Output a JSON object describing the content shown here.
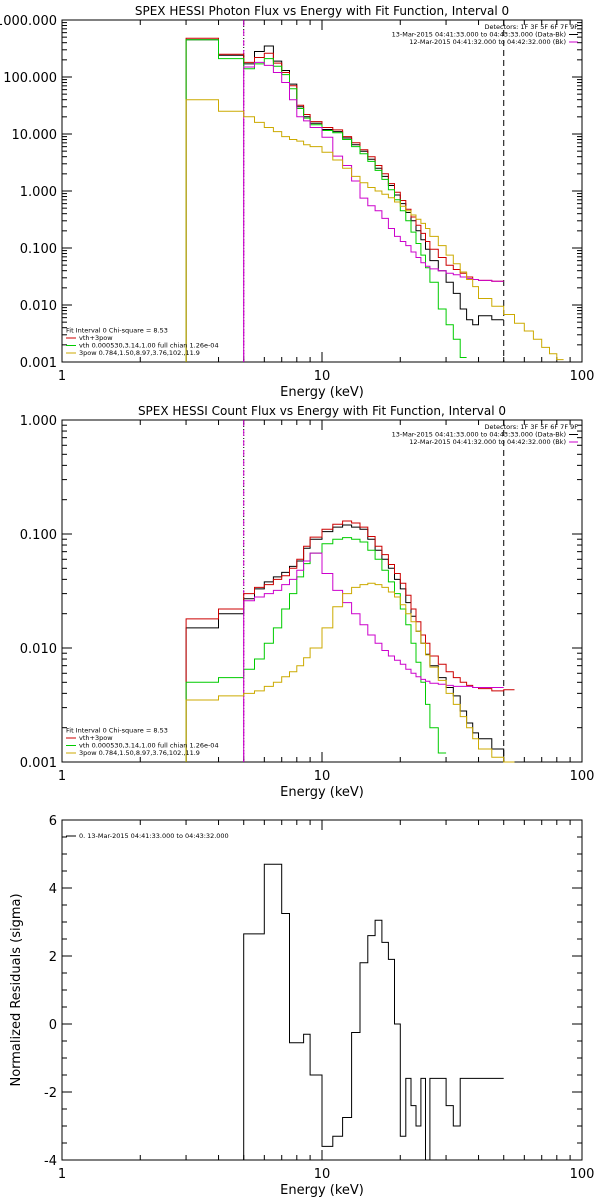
{
  "chart_data": [
    {
      "type": "line",
      "title": "SPEX HESSI Photon Flux vs Energy with Fit Function, Interval 0",
      "xlabel": "Energy (keV)",
      "ylabel": "",
      "xscale": "log",
      "yscale": "log",
      "xlim": [
        1,
        100
      ],
      "ylim": [
        0.001,
        1000
      ],
      "xticks": [
        {
          "v": 1,
          "label": "1"
        },
        {
          "v": 10,
          "label": "10"
        },
        {
          "v": 100,
          "label": "100"
        }
      ],
      "yticks": [
        {
          "v": 1000,
          "label": "1000.000"
        },
        {
          "v": 100,
          "label": "100.000"
        },
        {
          "v": 10,
          "label": "10.000"
        },
        {
          "v": 1,
          "label": "1.000"
        },
        {
          "v": 0.1,
          "label": "0.100"
        },
        {
          "v": 0.01,
          "label": "0.010"
        },
        {
          "v": 0.001,
          "label": "0.001"
        }
      ],
      "vlines": [
        {
          "x": 5,
          "style": "dotted",
          "color": "#000000"
        },
        {
          "x": 5,
          "style": "dashed",
          "color": "#cc00cc"
        },
        {
          "x": 50,
          "style": "dashed",
          "color": "#000000"
        }
      ],
      "legend_left": [
        {
          "text": "Fit Interval 0   Chi-square = 8.53",
          "color": "#000000"
        },
        {
          "text": "vth+3pow",
          "color": "#cc0000"
        },
        {
          "text": "vth 0.000530,3.14,1.00  full chian 1.26e-04",
          "color": "#00cc00"
        },
        {
          "text": "3pow 0.784,1.50,8.97,3.76,102.,11.9",
          "color": "#ccaa00"
        }
      ],
      "legend_right": [
        {
          "text": "Detectors: 1F 3F 5F 6F 7F 9F",
          "color": "#000000"
        },
        {
          "text": "13-Mar-2015 04:41:33.000 to 04:43:33.000 (Data-Bk)",
          "color": "#000000"
        },
        {
          "text": "12-Mar-2015 04:41:32.000 to 04:42:32.000 (Bk)",
          "color": "#cc00cc"
        }
      ],
      "edges": [
        3,
        4,
        5,
        5.5,
        6,
        6.5,
        7,
        7.5,
        8,
        8.5,
        9,
        10,
        11,
        12,
        13,
        14,
        15,
        16,
        17,
        18,
        19,
        20,
        21,
        22,
        23,
        24,
        25,
        26,
        28,
        30,
        32,
        34,
        36,
        38,
        40,
        45,
        50,
        55,
        60,
        65,
        70,
        75,
        80,
        85,
        90
      ],
      "series": [
        {
          "color": "#000000",
          "values": [
            450,
            240,
            170,
            280,
            350,
            190,
            130,
            75,
            30,
            20,
            15.5,
            12,
            11,
            8.5,
            6.5,
            5,
            3.6,
            2.5,
            1.8,
            1.25,
            0.85,
            0.6,
            0.42,
            0.3,
            0.2,
            0.14,
            0.095,
            0.06,
            0.04,
            0.025,
            0.016,
            0.0085,
            0.0055,
            0.0045,
            0.0065,
            0.0055,
            null,
            null,
            null,
            null,
            null,
            null,
            null,
            null
          ]
        },
        {
          "color": "#cc0000",
          "values": [
            480,
            250,
            180,
            220,
            260,
            175,
            120,
            70,
            32,
            22,
            16.5,
            13,
            11.8,
            9,
            7,
            5.3,
            4,
            2.8,
            2,
            1.35,
            0.95,
            0.68,
            0.48,
            0.35,
            0.25,
            0.18,
            0.13,
            0.095,
            0.068,
            0.05,
            0.042,
            0.036,
            0.031,
            0.028,
            0.027,
            0.026,
            null,
            null,
            null,
            null,
            null,
            null,
            null,
            null
          ]
        },
        {
          "color": "#00cc00",
          "values": [
            450,
            210,
            140,
            170,
            210,
            155,
            110,
            62,
            28,
            19,
            14.5,
            11.5,
            10.5,
            8,
            6,
            4.5,
            3.3,
            2.3,
            1.6,
            1.05,
            0.7,
            0.45,
            0.3,
            0.19,
            0.12,
            0.075,
            0.045,
            0.025,
            0.0085,
            0.0045,
            0.0025,
            0.0012,
            null,
            null,
            null,
            null,
            null,
            null,
            null,
            null,
            null,
            null,
            null,
            null
          ]
        },
        {
          "color": "#cc00cc",
          "values": [
            null,
            null,
            150,
            180,
            160,
            120,
            80,
            40,
            20,
            17,
            13,
            8.8,
            4.1,
            2.8,
            1.5,
            0.75,
            0.55,
            0.45,
            0.33,
            0.22,
            0.16,
            0.13,
            0.11,
            0.085,
            0.068,
            0.055,
            0.048,
            0.043,
            0.04,
            0.036,
            0.034,
            0.031,
            0.029,
            0.028,
            0.027,
            0.026,
            null,
            null,
            null,
            null,
            null,
            null,
            null,
            null
          ]
        },
        {
          "color": "#ccaa00",
          "values": [
            40,
            25,
            20,
            16,
            13,
            11,
            9,
            8,
            7.5,
            6.5,
            6,
            4.8,
            3.5,
            2.5,
            1.8,
            1.4,
            1.15,
            1,
            0.88,
            0.76,
            0.64,
            0.54,
            0.45,
            0.38,
            0.32,
            0.27,
            0.22,
            0.16,
            0.11,
            0.075,
            0.053,
            0.038,
            0.028,
            0.021,
            0.013,
            0.0095,
            0.0068,
            0.0048,
            0.0035,
            0.0025,
            0.0018,
            0.0014,
            0.0011,
            null
          ]
        }
      ]
    },
    {
      "type": "line",
      "title": "SPEX HESSI Count Flux vs Energy with Fit Function, Interval 0",
      "xlabel": "Energy (keV)",
      "ylabel": "",
      "xscale": "log",
      "yscale": "log",
      "xlim": [
        1,
        100
      ],
      "ylim": [
        0.001,
        1
      ],
      "xticks": [
        {
          "v": 1,
          "label": "1"
        },
        {
          "v": 10,
          "label": "10"
        },
        {
          "v": 100,
          "label": "100"
        }
      ],
      "yticks": [
        {
          "v": 1,
          "label": "1.000"
        },
        {
          "v": 0.1,
          "label": "0.100"
        },
        {
          "v": 0.01,
          "label": "0.010"
        },
        {
          "v": 0.001,
          "label": "0.001"
        }
      ],
      "vlines": [
        {
          "x": 5,
          "style": "dotted",
          "color": "#000000"
        },
        {
          "x": 5,
          "style": "dashed",
          "color": "#cc00cc"
        },
        {
          "x": 50,
          "style": "dashed",
          "color": "#000000"
        }
      ],
      "legend_left": [
        {
          "text": "Fit Interval 0   Chi-square = 8.53",
          "color": "#000000"
        },
        {
          "text": "vth+3pow",
          "color": "#cc0000"
        },
        {
          "text": "vth 0.000530,3.14,1.00  full chian 1.26e-04",
          "color": "#00cc00"
        },
        {
          "text": "3pow 0.784,1.50,8.97,3.76,102.,11.9",
          "color": "#ccaa00"
        }
      ],
      "legend_right": [
        {
          "text": "Detectors: 1F 3F 5F 6F 7F 9F",
          "color": "#000000"
        },
        {
          "text": "13-Mar-2015 04:41:33.000 to 04:43:33.000 (Data-Bk)",
          "color": "#000000"
        },
        {
          "text": "12-Mar-2015 04:41:32.000 to 04:42:32.000 (Bk)",
          "color": "#cc00cc"
        }
      ],
      "edges": [
        3,
        4,
        5,
        5.5,
        6,
        6.5,
        7,
        7.5,
        8,
        8.5,
        9,
        10,
        11,
        12,
        13,
        14,
        15,
        16,
        17,
        18,
        19,
        20,
        21,
        22,
        23,
        24,
        25,
        26,
        28,
        30,
        32,
        34,
        36,
        38,
        40,
        45,
        50,
        55
      ],
      "series": [
        {
          "color": "#000000",
          "values": [
            0.015,
            0.02,
            0.027,
            0.033,
            0.038,
            0.042,
            0.046,
            0.052,
            0.058,
            0.075,
            0.09,
            0.105,
            0.115,
            0.12,
            0.115,
            0.11,
            0.09,
            0.072,
            0.06,
            0.05,
            0.04,
            0.033,
            0.025,
            0.019,
            0.014,
            0.011,
            0.0088,
            0.007,
            0.0055,
            0.0045,
            0.0038,
            0.0028,
            0.0022,
            0.0018,
            0.0016,
            0.0013,
            0.001
          ]
        },
        {
          "color": "#cc0000",
          "values": [
            0.018,
            0.022,
            0.03,
            0.034,
            0.036,
            0.04,
            0.043,
            0.05,
            0.06,
            0.078,
            0.094,
            0.11,
            0.122,
            0.13,
            0.125,
            0.115,
            0.095,
            0.078,
            0.066,
            0.054,
            0.045,
            0.037,
            0.029,
            0.022,
            0.017,
            0.013,
            0.011,
            0.0085,
            0.0072,
            0.0062,
            0.0055,
            0.005,
            0.0047,
            0.0045,
            0.0044,
            0.0042,
            0.0043
          ]
        },
        {
          "color": "#00cc00",
          "values": [
            0.005,
            0.0055,
            0.0065,
            0.008,
            0.011,
            0.015,
            0.022,
            0.03,
            0.042,
            0.055,
            0.068,
            0.082,
            0.09,
            0.093,
            0.09,
            0.085,
            0.072,
            0.06,
            0.048,
            0.038,
            0.03,
            0.022,
            0.016,
            0.011,
            0.0075,
            0.005,
            0.0032,
            0.002,
            0.0012,
            null,
            null,
            null,
            null,
            null,
            null,
            null,
            null
          ]
        },
        {
          "color": "#cc00cc",
          "values": [
            null,
            null,
            0.026,
            0.028,
            0.03,
            0.032,
            0.036,
            0.04,
            0.048,
            0.058,
            0.068,
            0.045,
            0.032,
            0.025,
            0.02,
            0.016,
            0.013,
            0.011,
            0.0095,
            0.0085,
            0.0078,
            0.0072,
            0.0065,
            0.006,
            0.0056,
            0.0053,
            0.0051,
            0.0049,
            0.0048,
            0.0047,
            0.0046,
            0.0046,
            0.0046,
            0.0045,
            0.0045,
            0.0045,
            null
          ]
        },
        {
          "color": "#ccaa00",
          "values": [
            0.0035,
            0.0038,
            0.004,
            0.0042,
            0.0046,
            0.005,
            0.0056,
            0.0062,
            0.007,
            0.0082,
            0.01,
            0.015,
            0.023,
            0.03,
            0.034,
            0.036,
            0.037,
            0.036,
            0.034,
            0.031,
            0.028,
            0.024,
            0.02,
            0.017,
            0.014,
            0.011,
            0.0087,
            0.0068,
            0.0052,
            0.004,
            0.0032,
            0.0025,
            0.002,
            0.0016,
            0.0013,
            0.0011,
            0.001
          ]
        }
      ]
    },
    {
      "type": "line",
      "title": "",
      "xlabel": "Energy (keV)",
      "ylabel": "Normalized Residuals (sigma)",
      "xscale": "log",
      "yscale": "linear",
      "xlim": [
        1,
        100
      ],
      "ylim": [
        -4,
        6
      ],
      "xticks": [
        {
          "v": 1,
          "label": "1"
        },
        {
          "v": 10,
          "label": "10"
        },
        {
          "v": 100,
          "label": "100"
        }
      ],
      "yticks": [
        {
          "v": 6,
          "label": "6"
        },
        {
          "v": 4,
          "label": "4"
        },
        {
          "v": 2,
          "label": "2"
        },
        {
          "v": 0,
          "label": "0"
        },
        {
          "v": -2,
          "label": "-2"
        },
        {
          "v": -4,
          "label": "-4"
        }
      ],
      "vlines": [],
      "legend_left": [
        {
          "text": "0. 13-Mar-2015 04:41:33.000 to 04:43:32.000",
          "color": "#000000"
        }
      ],
      "legend_right": [],
      "edges": [
        5,
        6,
        7,
        7.5,
        8,
        8.5,
        9,
        10,
        11,
        12,
        13,
        14,
        15,
        16,
        17,
        18,
        19,
        20,
        21,
        22,
        23,
        24,
        25,
        26,
        28,
        30,
        32,
        34,
        36,
        38,
        40,
        45,
        50
      ],
      "series": [
        {
          "color": "#000000",
          "values": [
            2.65,
            4.7,
            3.25,
            -0.55,
            -0.55,
            -0.3,
            -1.5,
            -3.6,
            -3.3,
            -2.75,
            -0.25,
            1.8,
            2.6,
            3.05,
            2.4,
            1.9,
            0.0,
            -3.3,
            -1.6,
            -2.4,
            -3.0,
            -1.6,
            -4.0,
            -1.6,
            -1.6,
            -2.4,
            -3.0,
            -1.6,
            -1.6,
            -1.6,
            -1.6,
            -1.6
          ]
        }
      ]
    }
  ]
}
